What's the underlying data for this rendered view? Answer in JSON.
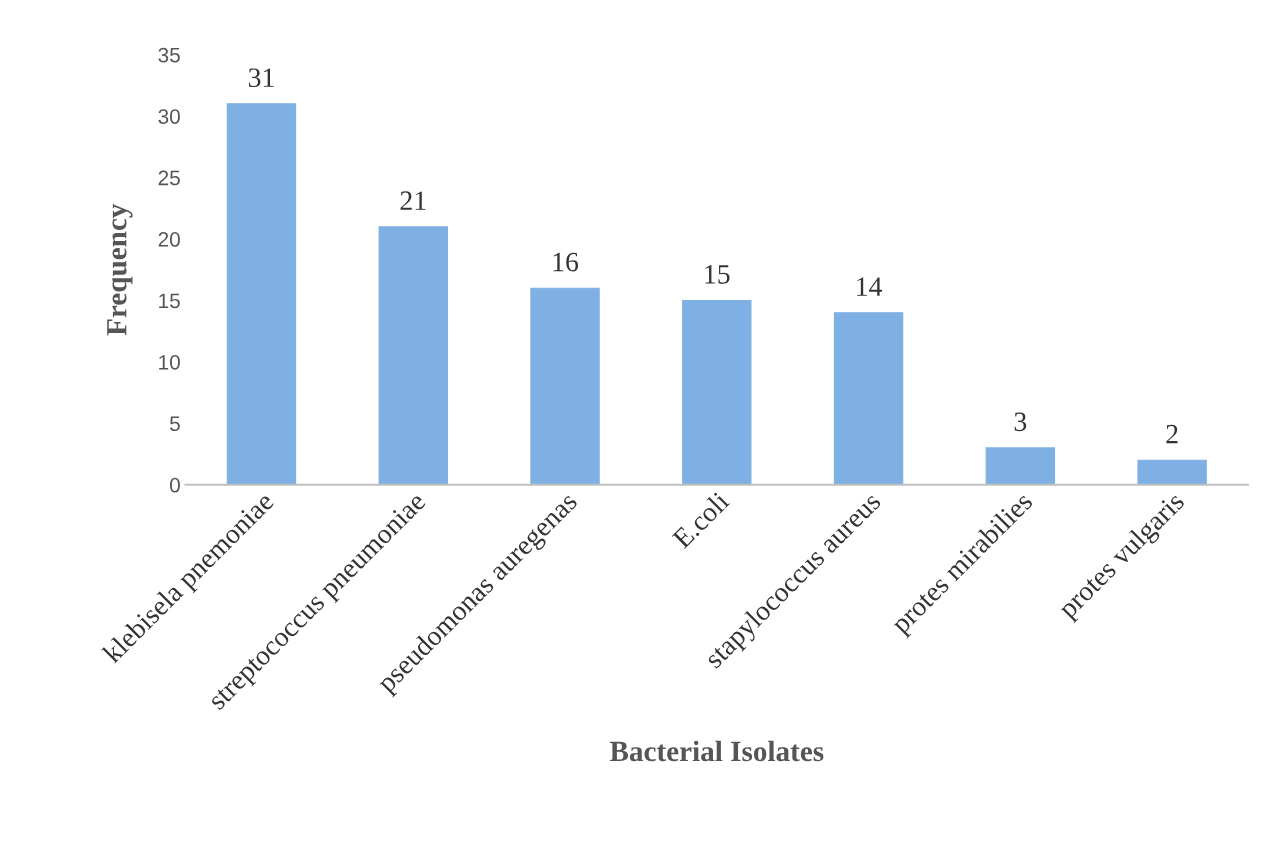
{
  "chart_data": {
    "type": "bar",
    "xlabel": "Bacterial Isolates",
    "ylabel": "Frequency",
    "categories": [
      "klebisela pnemoniae",
      "streptococcus pneumoniae",
      "pseudomonas auregenas",
      "E.coli",
      "stapylococcus aureus",
      "protes mirabilies",
      "protes vulgaris"
    ],
    "values": [
      31,
      21,
      16,
      15,
      14,
      3,
      2
    ],
    "color": "#7fb0e3",
    "ylim": [
      0,
      35
    ],
    "yticks": [
      0,
      5,
      10,
      15,
      20,
      25,
      30,
      35
    ],
    "data_labels": true,
    "grid": false,
    "legend": false
  }
}
